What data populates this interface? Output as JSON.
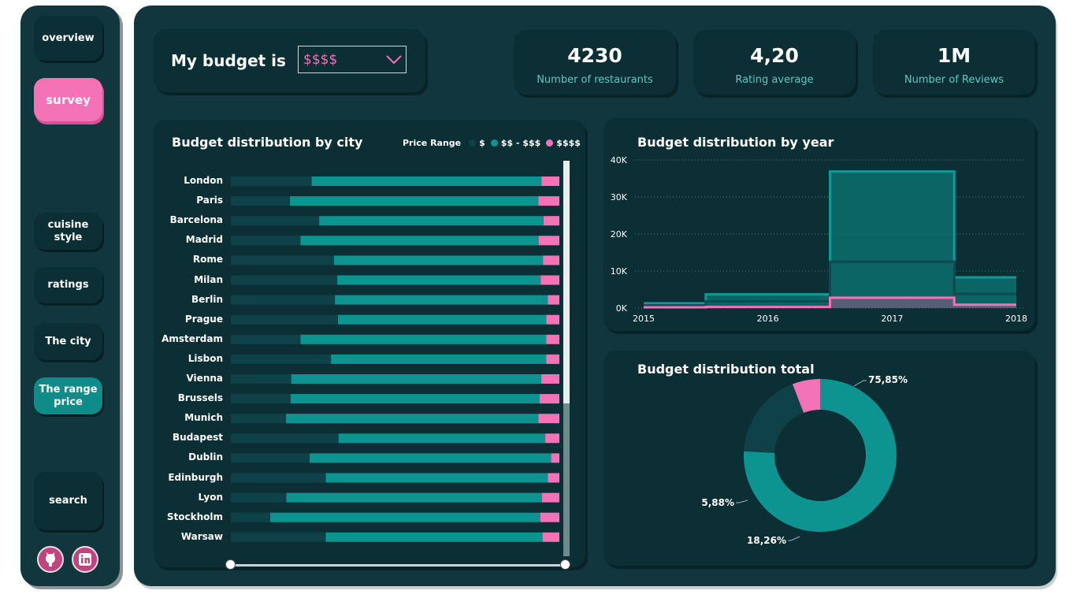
{
  "nav": {
    "overview": "overview",
    "survey": "survey",
    "cuisine_style": "cuisine style",
    "ratings": "ratings",
    "the_city": "The city",
    "range_price": "The range price",
    "search": "search"
  },
  "budget": {
    "label": "My budget is",
    "selected": "$$$$"
  },
  "kpis": [
    {
      "value": "4230",
      "label": "Number of restaurants"
    },
    {
      "value": "4,20",
      "label": "Rating average"
    },
    {
      "value": "1M",
      "label": "Number of Reviews"
    }
  ],
  "colors": {
    "low": "#0f4148",
    "mid": "#0d9491",
    "high": "#f472b6"
  },
  "chart_city": {
    "title": "Budget distribution by city",
    "legend_title": "Price Range",
    "legend": [
      "$",
      "$$ - $$$",
      "$$$$"
    ]
  },
  "chart_year": {
    "title": "Budget distribution by year"
  },
  "chart_total": {
    "title": "Budget distribution total"
  },
  "chart_data": [
    {
      "type": "bar",
      "title": "Budget distribution by city",
      "stacked": true,
      "orientation": "horizontal",
      "percent": true,
      "categories": [
        "London",
        "Paris",
        "Barcelona",
        "Madrid",
        "Rome",
        "Milan",
        "Berlin",
        "Prague",
        "Amsterdam",
        "Lisbon",
        "Vienna",
        "Brussels",
        "Munich",
        "Budapest",
        "Dublin",
        "Edinburgh",
        "Lyon",
        "Stockholm",
        "Warsaw"
      ],
      "series": [
        {
          "name": "$",
          "values": [
            24.6,
            18.0,
            26.9,
            21.2,
            31.4,
            32.4,
            31.7,
            32.6,
            21.2,
            30.5,
            18.4,
            18.2,
            16.8,
            32.8,
            24.0,
            28.9,
            16.9,
            12.0,
            28.9
          ]
        },
        {
          "name": "$$ - $$$",
          "values": [
            70.0,
            75.6,
            68.3,
            72.5,
            63.6,
            61.9,
            64.8,
            63.4,
            74.8,
            65.5,
            76.1,
            75.8,
            76.8,
            62.9,
            73.5,
            67.6,
            77.8,
            82.2,
            66.0
          ]
        },
        {
          "name": "$$$$",
          "values": [
            5.4,
            6.4,
            4.8,
            6.3,
            5.0,
            5.7,
            3.5,
            4.0,
            4.0,
            4.0,
            5.5,
            6.0,
            6.4,
            4.3,
            2.5,
            3.5,
            5.3,
            5.8,
            5.1
          ]
        }
      ]
    },
    {
      "type": "area",
      "title": "Budget distribution by year",
      "x": [
        2015,
        2016,
        2017,
        2018
      ],
      "ylim": [
        0,
        40000
      ],
      "yticks": [
        "0K",
        "10K",
        "20K",
        "30K",
        "40K"
      ],
      "series": [
        {
          "name": "$",
          "values": [
            700,
            1800,
            12500,
            3800
          ]
        },
        {
          "name": "$$ - $$$",
          "values": [
            1300,
            3700,
            36900,
            8300
          ]
        },
        {
          "name": "$$$$",
          "values": [
            200,
            300,
            2800,
            900
          ]
        }
      ]
    },
    {
      "type": "pie",
      "title": "Budget distribution total",
      "labels": [
        "$$ - $$$",
        "$",
        "$$$$"
      ],
      "values": [
        75.85,
        18.26,
        5.88
      ],
      "value_labels": [
        "75,85%",
        "18,26%",
        "5,88%"
      ]
    }
  ]
}
